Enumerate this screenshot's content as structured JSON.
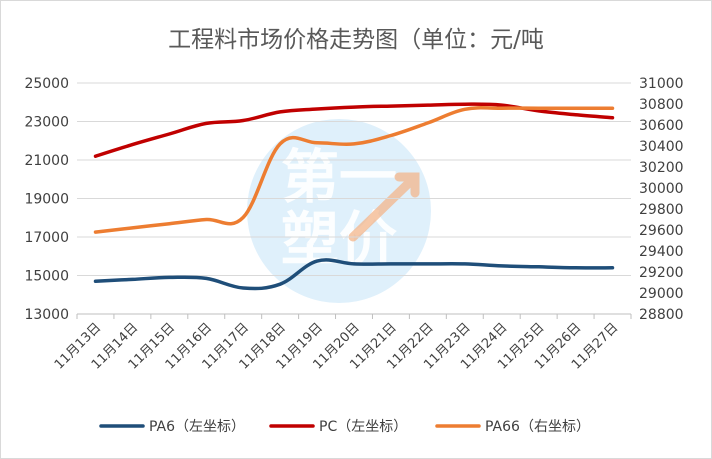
{
  "chart_data": {
    "type": "line",
    "title": "工程料市场价格走势图（单位：元/吨",
    "watermark": "第一塑价",
    "categories": [
      "11月13日",
      "11月14日",
      "11月15日",
      "11月16日",
      "11月17日",
      "11月18日",
      "11月19日",
      "11月20日",
      "11月21日",
      "11月22日",
      "11月23日",
      "11月24日",
      "11月25日",
      "11月26日",
      "11月27日"
    ],
    "left_axis": {
      "min": 13000,
      "max": 25000,
      "ticks": [
        "13000",
        "15000",
        "17000",
        "19000",
        "21000",
        "23000",
        "25000"
      ]
    },
    "right_axis": {
      "min": 28800,
      "max": 31000,
      "ticks": [
        "28800",
        "29000",
        "29200",
        "29400",
        "29600",
        "29800",
        "30000",
        "30200",
        "30400",
        "30600",
        "30800",
        "31000"
      ]
    },
    "grid": true,
    "legend_position": "bottom",
    "series": [
      {
        "name": "PA6（左坐标）",
        "axis": "left",
        "color": "#1f4e79",
        "values": [
          14700,
          14800,
          14900,
          14850,
          14350,
          14550,
          15750,
          15600,
          15600,
          15600,
          15600,
          15500,
          15450,
          15400,
          15400
        ]
      },
      {
        "name": "PC（左坐标）",
        "axis": "left",
        "color": "#c00000",
        "values": [
          21200,
          21800,
          22350,
          22900,
          23050,
          23500,
          23650,
          23750,
          23800,
          23850,
          23900,
          23850,
          23550,
          23350,
          23200
        ]
      },
      {
        "name": "PA66（右坐标）",
        "axis": "right",
        "color": "#ed7d31",
        "values": [
          29580,
          29620,
          29660,
          29700,
          29720,
          30420,
          30430,
          30420,
          30500,
          30620,
          30750,
          30760,
          30760,
          30760,
          30760
        ]
      }
    ]
  }
}
